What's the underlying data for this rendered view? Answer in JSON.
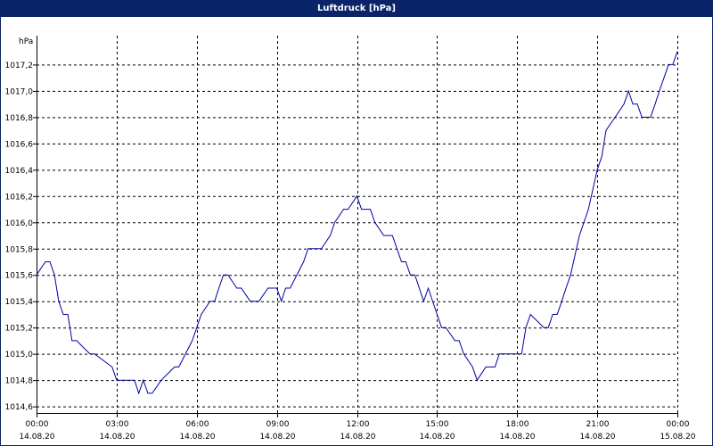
{
  "window": {
    "title": "Luftdruck [hPa]"
  },
  "colors": {
    "titlebar": "#0a246a",
    "series": "#0000a0",
    "grid": "#000000"
  },
  "chart_data": {
    "type": "line",
    "title": "Luftdruck [hPa]",
    "ylabel": "hPa",
    "xlabel": "",
    "ylim": [
      1014.6,
      1017.4
    ],
    "xlim": [
      0,
      24
    ],
    "grid": true,
    "grid_style": "dashed",
    "y_ticks": [
      {
        "value": 1014.6,
        "label": "1014,6"
      },
      {
        "value": 1014.8,
        "label": "1014,8"
      },
      {
        "value": 1015.0,
        "label": "1015,0"
      },
      {
        "value": 1015.2,
        "label": "1015,2"
      },
      {
        "value": 1015.4,
        "label": "1015,4"
      },
      {
        "value": 1015.6,
        "label": "1015,6"
      },
      {
        "value": 1015.8,
        "label": "1015,8"
      },
      {
        "value": 1016.0,
        "label": "1016,0"
      },
      {
        "value": 1016.2,
        "label": "1016,2"
      },
      {
        "value": 1016.4,
        "label": "1016,4"
      },
      {
        "value": 1016.6,
        "label": "1016,6"
      },
      {
        "value": 1016.8,
        "label": "1016,8"
      },
      {
        "value": 1017.0,
        "label": "1017,0"
      },
      {
        "value": 1017.2,
        "label": "1017,2"
      }
    ],
    "x_ticks": [
      {
        "value": 0,
        "time": "00:00",
        "date": "14.08.20"
      },
      {
        "value": 3,
        "time": "03:00",
        "date": "14.08.20"
      },
      {
        "value": 6,
        "time": "06:00",
        "date": "14.08.20"
      },
      {
        "value": 9,
        "time": "09:00",
        "date": "14.08.20"
      },
      {
        "value": 12,
        "time": "12:00",
        "date": "14.08.20"
      },
      {
        "value": 15,
        "time": "15:00",
        "date": "14.08.20"
      },
      {
        "value": 18,
        "time": "18:00",
        "date": "14.08.20"
      },
      {
        "value": 21,
        "time": "21:00",
        "date": "14.08.20"
      },
      {
        "value": 24,
        "time": "00:00",
        "date": "15.08.20"
      }
    ],
    "series": [
      {
        "x": [
          0,
          0.33,
          0.5,
          0.67,
          0.83,
          1.0,
          1.17,
          1.33,
          1.5,
          2.0,
          2.17,
          2.83,
          3.0,
          3.67,
          3.83,
          4.0,
          4.17,
          4.33,
          4.67,
          5.17,
          5.33,
          5.83,
          6.0,
          6.17,
          6.5,
          6.67,
          6.83,
          7.0,
          7.17,
          7.5,
          7.67,
          8.0,
          8.17,
          8.33,
          8.67,
          8.83,
          9.0,
          9.17,
          9.33,
          9.5,
          10.0,
          10.17,
          10.33,
          10.5,
          10.67,
          11.0,
          11.17,
          11.5,
          11.67,
          12.0,
          12.17,
          12.5,
          12.67,
          13.0,
          13.33,
          13.5,
          13.67,
          13.83,
          14.0,
          14.17,
          14.5,
          14.67,
          15.0,
          15.17,
          15.33,
          15.67,
          15.83,
          16.0,
          16.33,
          16.5,
          16.83,
          17.17,
          17.33,
          18.0,
          18.17,
          18.33,
          18.5,
          19.0,
          19.17,
          19.33,
          19.5,
          19.67,
          19.83,
          20.0,
          20.33,
          20.67,
          21.0,
          21.17,
          21.33,
          21.67,
          22.0,
          22.17,
          22.33,
          22.5,
          22.67,
          23.0,
          23.17,
          23.33,
          23.67,
          23.83,
          24.0
        ],
        "values": [
          1015.6,
          1015.7,
          1015.7,
          1015.6,
          1015.4,
          1015.3,
          1015.3,
          1015.1,
          1015.1,
          1015.0,
          1015.0,
          1014.9,
          1014.8,
          1014.8,
          1014.7,
          1014.8,
          1014.7,
          1014.7,
          1014.8,
          1014.9,
          1014.9,
          1015.1,
          1015.2,
          1015.3,
          1015.4,
          1015.4,
          1015.5,
          1015.6,
          1015.6,
          1015.5,
          1015.5,
          1015.4,
          1015.4,
          1015.4,
          1015.5,
          1015.5,
          1015.5,
          1015.4,
          1015.5,
          1015.5,
          1015.7,
          1015.8,
          1015.8,
          1015.8,
          1015.8,
          1015.9,
          1016.0,
          1016.1,
          1016.1,
          1016.2,
          1016.1,
          1016.1,
          1016.0,
          1015.9,
          1015.9,
          1015.8,
          1015.7,
          1015.7,
          1015.6,
          1015.6,
          1015.4,
          1015.5,
          1015.3,
          1015.2,
          1015.2,
          1015.1,
          1015.1,
          1015.0,
          1014.9,
          1014.8,
          1014.9,
          1014.9,
          1015.0,
          1015.0,
          1015.0,
          1015.2,
          1015.3,
          1015.2,
          1015.2,
          1015.3,
          1015.3,
          1015.4,
          1015.5,
          1015.6,
          1015.9,
          1016.1,
          1016.4,
          1016.5,
          1016.7,
          1016.8,
          1016.9,
          1017.0,
          1016.9,
          1016.9,
          1016.8,
          1016.8,
          1016.9,
          1017.0,
          1017.2,
          1017.2,
          1017.3
        ]
      }
    ]
  }
}
